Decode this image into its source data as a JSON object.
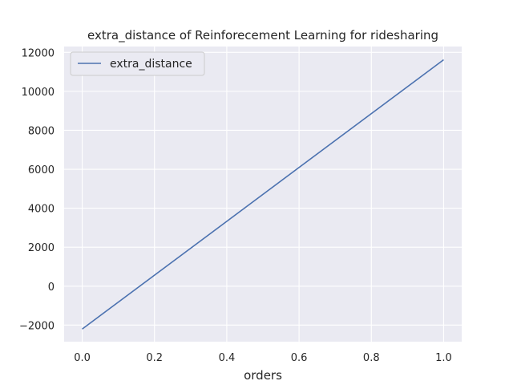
{
  "chart_data": {
    "type": "line",
    "title": "extra_distance of Reinforecement Learning for ridesharing",
    "xlabel": "orders",
    "ylabel": "",
    "xlim": [
      -0.05,
      1.05
    ],
    "ylim": [
      -2850,
      12300
    ],
    "x_ticks": [
      0.0,
      0.2,
      0.4,
      0.6,
      0.8,
      1.0
    ],
    "x_tick_labels": [
      "0.0",
      "0.2",
      "0.4",
      "0.6",
      "0.8",
      "1.0"
    ],
    "y_ticks": [
      -2000,
      0,
      2000,
      4000,
      6000,
      8000,
      10000,
      12000
    ],
    "y_tick_labels": [
      "−2000",
      "0",
      "2000",
      "4000",
      "6000",
      "8000",
      "10000",
      "12000"
    ],
    "grid": true,
    "legend_position": "top-left",
    "series": [
      {
        "name": "extra_distance",
        "color": "#4c72b0",
        "x": [
          0.0,
          1.0
        ],
        "y": [
          -2200,
          11620
        ]
      }
    ]
  },
  "colors": {
    "plot_background": "#eaeaf2",
    "grid": "#ffffff",
    "text": "#262626"
  }
}
